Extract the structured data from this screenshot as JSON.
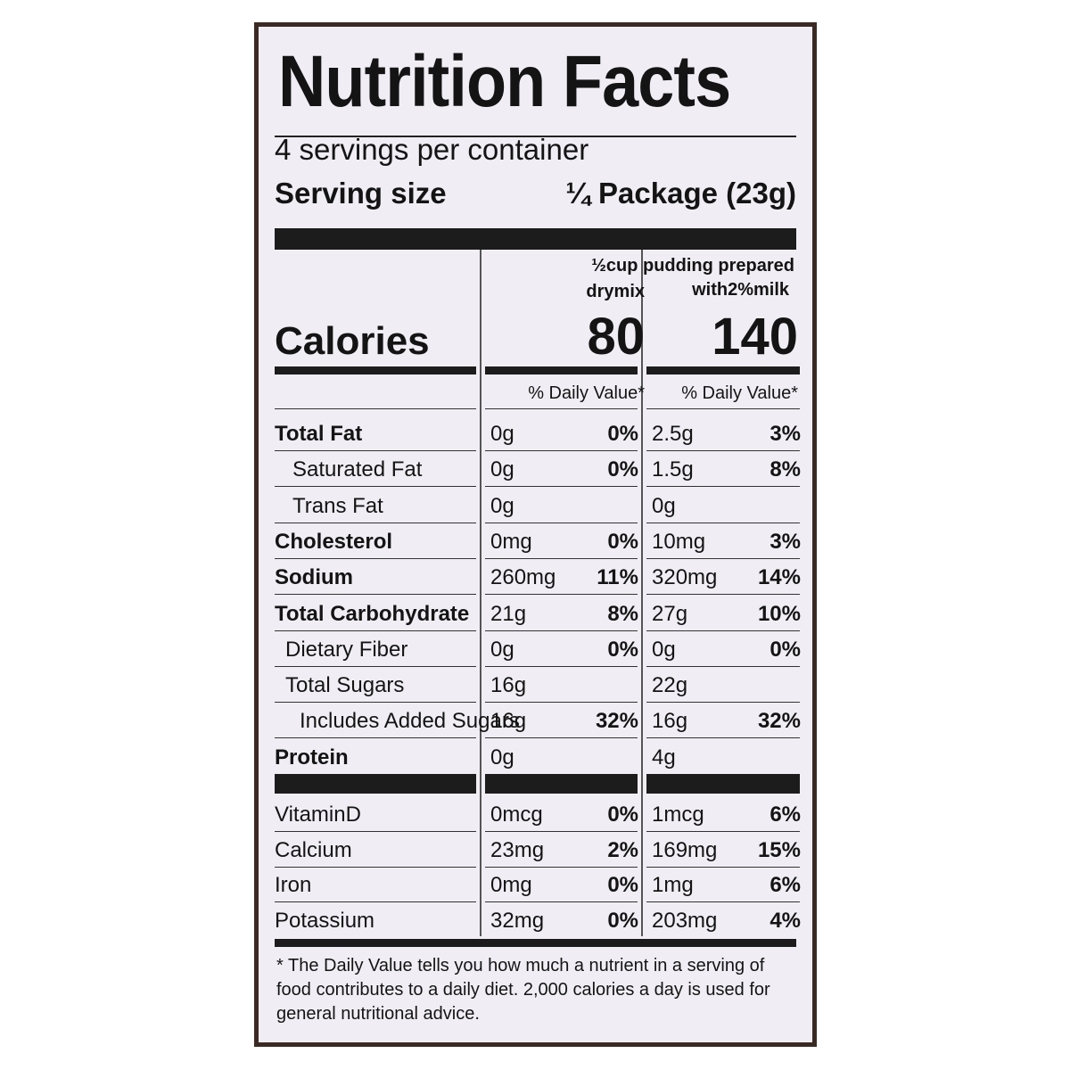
{
  "label": {
    "title": "Nutrition Facts",
    "servings_per_container": "4 servings per container",
    "serving_size_label": "Serving size",
    "serving_size_value": "¼ Package (23g)"
  },
  "columns": {
    "dry": {
      "header": "drymix",
      "calories": "80",
      "dv_header": "% Daily Value*"
    },
    "prepared": {
      "header_line1": "½cup pudding prepared",
      "header_line2": "with2%milk",
      "calories": "140",
      "dv_header": "% Daily Value*"
    }
  },
  "calories_label": "Calories",
  "nutrients": [
    {
      "name": "Total Fat",
      "bold": true,
      "indent": 0,
      "dry_amt": "0g",
      "dry_dv": "0%",
      "prep_amt": "2.5g",
      "prep_dv": "3%"
    },
    {
      "name": "Saturated Fat",
      "bold": false,
      "indent": 2,
      "dry_amt": "0g",
      "dry_dv": "0%",
      "prep_amt": "1.5g",
      "prep_dv": "8%"
    },
    {
      "name": "Trans Fat",
      "bold": false,
      "indent": 2,
      "dry_amt": "0g",
      "dry_dv": "",
      "prep_amt": "0g",
      "prep_dv": ""
    },
    {
      "name": "Cholesterol",
      "bold": true,
      "indent": 0,
      "dry_amt": "0mg",
      "dry_dv": "0%",
      "prep_amt": "10mg",
      "prep_dv": "3%"
    },
    {
      "name": "Sodium",
      "bold": true,
      "indent": 0,
      "dry_amt": "260mg",
      "dry_dv": "11%",
      "prep_amt": "320mg",
      "prep_dv": "14%"
    },
    {
      "name": "Total Carbohydrate",
      "bold": true,
      "indent": 0,
      "dry_amt": "21g",
      "dry_dv": "8%",
      "prep_amt": "27g",
      "prep_dv": "10%"
    },
    {
      "name": "Dietary Fiber",
      "bold": false,
      "indent": 1,
      "dry_amt": "0g",
      "dry_dv": "0%",
      "prep_amt": "0g",
      "prep_dv": "0%"
    },
    {
      "name": "Total Sugars",
      "bold": false,
      "indent": 1,
      "dry_amt": "16g",
      "dry_dv": "",
      "prep_amt": "22g",
      "prep_dv": ""
    },
    {
      "name": "Includes Added Sugars",
      "bold": false,
      "indent": 3,
      "dry_amt": "16g",
      "dry_dv": "32%",
      "prep_amt": "16g",
      "prep_dv": "32%"
    },
    {
      "name": "Protein",
      "bold": true,
      "indent": 0,
      "dry_amt": "0g",
      "dry_dv": "",
      "prep_amt": "4g",
      "prep_dv": ""
    }
  ],
  "vitamins": [
    {
      "name": "VitaminD",
      "dry_amt": "0mcg",
      "dry_dv": "0%",
      "prep_amt": "1mcg",
      "prep_dv": "6%"
    },
    {
      "name": "Calcium",
      "dry_amt": "23mg",
      "dry_dv": "2%",
      "prep_amt": "169mg",
      "prep_dv": "15%"
    },
    {
      "name": "Iron",
      "dry_amt": "0mg",
      "dry_dv": "0%",
      "prep_amt": "1mg",
      "prep_dv": "6%"
    },
    {
      "name": "Potassium",
      "dry_amt": "32mg",
      "dry_dv": "0%",
      "prep_amt": "203mg",
      "prep_dv": "4%"
    }
  ],
  "footnote": "* The Daily Value tells you how much a nutrient in a serving of food contributes to a daily diet. 2,000 calories a day is used for general nutritional advice."
}
